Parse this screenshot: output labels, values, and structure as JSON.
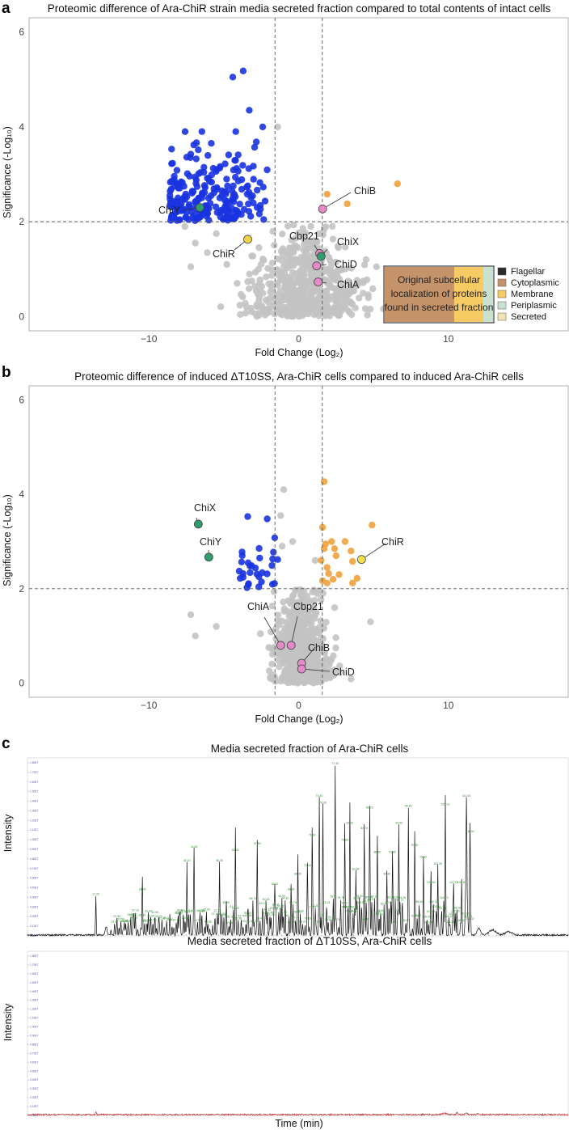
{
  "panels": {
    "a": "a",
    "b": "b",
    "c": "c"
  },
  "chart_data": [
    {
      "type": "scatter",
      "title": "Proteomic difference of Ara-ChiR strain media secreted fraction compared to total contents of intact cells",
      "xlabel": "Fold Change (Log₂)",
      "ylabel": "Significance (-Log₁₀)",
      "xlim": [
        -18,
        18
      ],
      "ylim": [
        -0.3,
        6.3
      ],
      "xticks": [
        -10,
        0,
        10
      ],
      "yticks": [
        0,
        2,
        4,
        6
      ],
      "thresholds": {
        "x": [
          -1.58,
          1.58
        ],
        "y": 2
      },
      "highlighted": [
        {
          "label": "ChiY",
          "x": -6.6,
          "y": 2.3,
          "color": "#2e9e6e"
        },
        {
          "label": "ChiR",
          "x": -3.4,
          "y": 1.63,
          "color": "#f2d24a"
        },
        {
          "label": "ChiB",
          "x": 1.6,
          "y": 2.27,
          "color": "#e48ac6"
        },
        {
          "label": "Cbp21",
          "x": 1.4,
          "y": 1.33,
          "color": "#e48ac6"
        },
        {
          "label": "ChiX",
          "x": 1.5,
          "y": 1.27,
          "color": "#2e9e6e"
        },
        {
          "label": "ChiD",
          "x": 1.2,
          "y": 1.07,
          "color": "#e48ac6"
        },
        {
          "label": "ChiA",
          "x": 1.3,
          "y": 0.73,
          "color": "#e48ac6"
        }
      ],
      "up_points": [
        [
          1.8,
          2.58
        ],
        [
          3.2,
          2.38
        ],
        [
          6.6,
          2.8
        ]
      ],
      "legend": {
        "title_lines": [
          "Original subcellular",
          "localization of proteins",
          "found in secreted fraction"
        ],
        "items": [
          {
            "label": "Flagellar",
            "color": "#2b2b2b"
          },
          {
            "label": "Cytoplasmic",
            "color": "#c4936a"
          },
          {
            "label": "Membrane",
            "color": "#f6cb63"
          },
          {
            "label": "Periplasmic",
            "color": "#c9e1cf"
          },
          {
            "label": "Secreted",
            "color": "#f6e3b4"
          }
        ]
      },
      "series_colors": {
        "down": "#1a33e0",
        "up": "#f0a13a",
        "ns": "#c3c3c3"
      }
    },
    {
      "type": "scatter",
      "title": "Proteomic difference of induced ΔT10SS, Ara-ChiR cells compared to induced Ara-ChiR cells",
      "xlabel": "Fold Change (Log₂)",
      "ylabel": "Significance (-Log₁₀)",
      "xlim": [
        -18,
        18
      ],
      "ylim": [
        -0.3,
        6.3
      ],
      "xticks": [
        -10,
        0,
        10
      ],
      "yticks": [
        0,
        2,
        4,
        6
      ],
      "thresholds": {
        "x": [
          -1.58,
          1.58
        ],
        "y": 2
      },
      "highlighted": [
        {
          "label": "ChiX",
          "x": -6.7,
          "y": 3.37,
          "color": "#2e9e6e"
        },
        {
          "label": "ChiY",
          "x": -6.0,
          "y": 2.67,
          "color": "#2e9e6e"
        },
        {
          "label": "ChiR",
          "x": 4.2,
          "y": 2.62,
          "color": "#f2e04a"
        },
        {
          "label": "ChiA",
          "x": -1.2,
          "y": 0.8,
          "color": "#e48ac6"
        },
        {
          "label": "Cbp21",
          "x": -0.5,
          "y": 0.8,
          "color": "#e48ac6"
        },
        {
          "label": "ChiB",
          "x": 0.2,
          "y": 0.42,
          "color": "#e48ac6"
        },
        {
          "label": "ChiD",
          "x": 0.2,
          "y": 0.3,
          "color": "#e48ac6"
        }
      ],
      "series_colors": {
        "down": "#1a33e0",
        "up": "#f0a13a",
        "ns": "#c3c3c3"
      }
    },
    {
      "type": "line",
      "title": "Media secreted fraction of Ara-ChiR cells",
      "ylabel": "Intensity",
      "xlabel": "",
      "xlim": [
        0,
        136
      ]
    },
    {
      "type": "line",
      "title": "Media secreted fraction of ΔT10SS, Ara-ChiR cells",
      "ylabel": "Intensity",
      "xlabel": "Time (min)",
      "xlim": [
        0,
        136
      ]
    }
  ]
}
